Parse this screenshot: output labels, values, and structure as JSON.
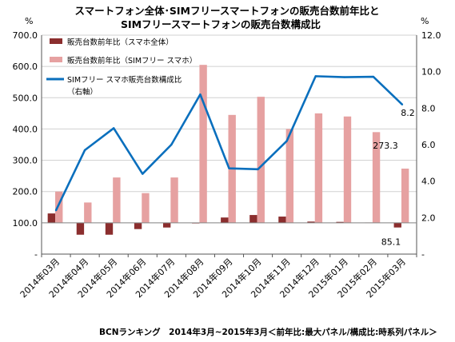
{
  "chart_data": {
    "type": "bar",
    "title_lines": [
      "スマートフォン全体･SIMフリースマートフォンの販売台数前年比と",
      "SIMフリースマートフォンの販売台数構成比"
    ],
    "categories": [
      "2014年03月",
      "2014年04月",
      "2014年05月",
      "2014年06月",
      "2014年07月",
      "2014年08月",
      "2014年09月",
      "2014年10月",
      "2014年11月",
      "2014年12月",
      "2015年01月",
      "2015年02月",
      "2015年03月"
    ],
    "series": [
      {
        "name": "販売台数前年比（スマホ全体）",
        "kind": "bar",
        "axis": "left",
        "color": "#8b2e2e",
        "values": [
          130,
          62,
          62,
          80,
          85,
          98,
          117,
          125,
          120,
          104,
          103,
          101,
          85.1
        ]
      },
      {
        "name": "販売台数前年比（SIMフリー スマホ）",
        "kind": "bar",
        "axis": "left",
        "color": "#e6a1a1",
        "values": [
          200,
          165,
          245,
          195,
          245,
          605,
          445,
          503,
          400,
          450,
          440,
          390,
          273.3
        ]
      },
      {
        "name_lines": [
          "SIMフリー スマホ販売台数構成比",
          "（右軸）"
        ],
        "kind": "line",
        "axis": "right",
        "color": "#0a6fbd",
        "values": [
          2.4,
          5.7,
          6.9,
          4.4,
          6.0,
          8.75,
          4.7,
          4.65,
          6.2,
          9.75,
          9.7,
          9.72,
          8.2
        ]
      }
    ],
    "left_axis": {
      "unit": "%",
      "min": 0,
      "max": 700,
      "step": 100,
      "baseline": 100,
      "tick_labels": [
        "-",
        "100.0",
        "200.0",
        "300.0",
        "400.0",
        "500.0",
        "600.0",
        "700.0"
      ]
    },
    "right_axis": {
      "unit": "%",
      "min": 0,
      "max": 12,
      "step": 2,
      "tick_labels": [
        "-",
        "2.0",
        "4.0",
        "6.0",
        "8.0",
        "10.0",
        "12.0"
      ]
    },
    "annotations": [
      {
        "text": "8.2",
        "series": 2,
        "index": 12
      },
      {
        "text": "273.3",
        "series": 1,
        "index": 12
      },
      {
        "text": "85.1",
        "series": 0,
        "index": 12
      }
    ],
    "grid": true,
    "legend_placement": "top-left"
  },
  "footer": "BCNランキング　2014年3月~2015年3月＜前年比:最大パネル/構成比:時系列パネル＞"
}
